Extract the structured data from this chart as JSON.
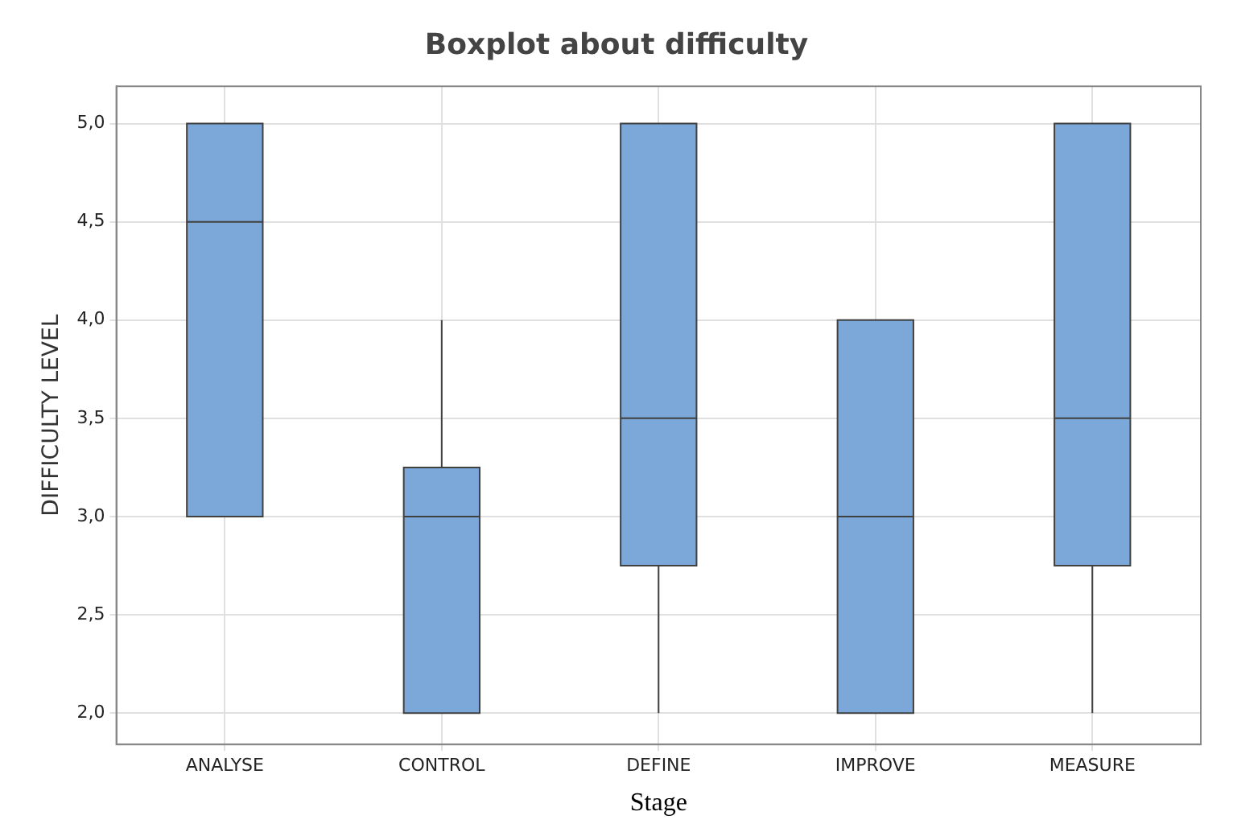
{
  "chart_data": {
    "type": "box",
    "title": "Boxplot about difficulty",
    "xlabel": "Stage",
    "ylabel": "DIFFICULTY LEVEL",
    "categories": [
      "ANALYSE",
      "CONTROL",
      "DEFINE",
      "IMPROVE",
      "MEASURE"
    ],
    "color": "#7ba7d9",
    "boxes": [
      {
        "low": 3,
        "q1": 3,
        "median": 4.5,
        "q3": 5,
        "high": 5
      },
      {
        "low": 2,
        "q1": 2,
        "median": 3,
        "q3": 3.25,
        "high": 4
      },
      {
        "low": 2,
        "q1": 2.75,
        "median": 3.5,
        "q3": 5,
        "high": 5
      },
      {
        "low": 2,
        "q1": 2,
        "median": 3,
        "q3": 4,
        "high": 4
      },
      {
        "low": 2,
        "q1": 2.75,
        "median": 3.5,
        "q3": 5,
        "high": 5
      }
    ],
    "ylim": [
      1.84,
      5.19
    ],
    "yticks": [
      {
        "value": 2,
        "label": "2,0"
      },
      {
        "value": 2.5,
        "label": "2,5"
      },
      {
        "value": 3,
        "label": "3,0"
      },
      {
        "value": 3.5,
        "label": "3,5"
      },
      {
        "value": 4,
        "label": "4,0"
      },
      {
        "value": 4.5,
        "label": "4,5"
      },
      {
        "value": 5,
        "label": "5,0"
      }
    ],
    "grid": true
  }
}
